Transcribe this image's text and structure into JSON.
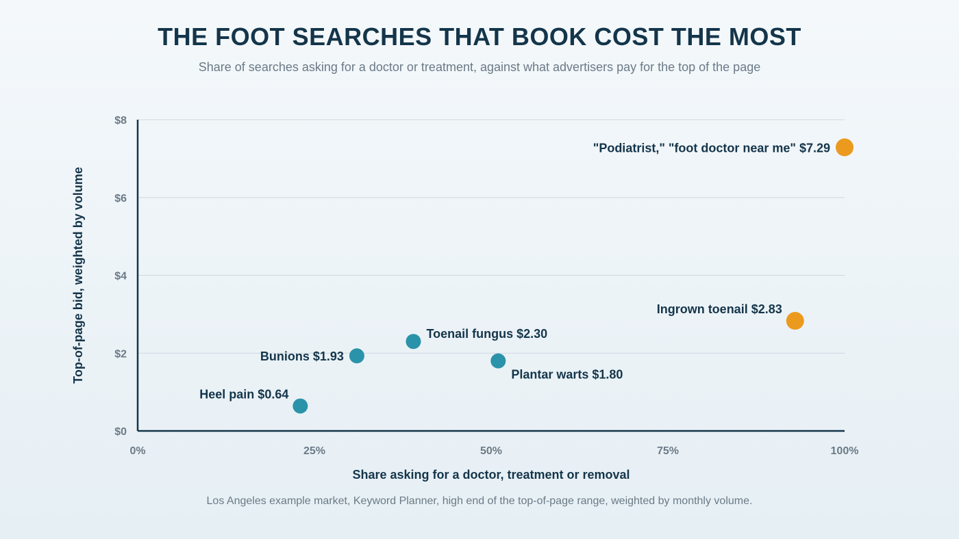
{
  "header": {
    "title": "THE FOOT SEARCHES THAT BOOK COST THE MOST",
    "subtitle": "Share of searches asking for a doctor or treatment, against what advertisers pay for the top of the page"
  },
  "footer": {
    "note": "Los Angeles example market, Keyword Planner, high end of the top-of-page range, weighted by monthly volume."
  },
  "colors": {
    "primary": "#2a93a9",
    "highlight": "#ec9a1e",
    "axis": "#14354a",
    "grid": "#cdd8df",
    "text": "#14354a",
    "muted": "#6b7a86"
  },
  "chart_data": {
    "type": "scatter",
    "xlabel": "Share asking for a doctor, treatment or removal",
    "ylabel": "Top-of-page bid, weighted by volume",
    "xlim": [
      0,
      100
    ],
    "ylim": [
      0,
      8
    ],
    "xticks": [
      {
        "value": 0,
        "label": "0%"
      },
      {
        "value": 25,
        "label": "25%"
      },
      {
        "value": 50,
        "label": "50%"
      },
      {
        "value": 75,
        "label": "75%"
      },
      {
        "value": 100,
        "label": "100%"
      }
    ],
    "yticks": [
      {
        "value": 0,
        "label": "$0"
      },
      {
        "value": 2,
        "label": "$2"
      },
      {
        "value": 4,
        "label": "$4"
      },
      {
        "value": 6,
        "label": "$6"
      },
      {
        "value": 8,
        "label": "$8"
      }
    ],
    "grid": "horizontal",
    "points": [
      {
        "key": "heel-pain",
        "label": "Heel pain $0.64",
        "x": 23,
        "y": 0.64,
        "highlight": false,
        "label_side": "upper-left"
      },
      {
        "key": "bunions",
        "label": "Bunions $1.93",
        "x": 31,
        "y": 1.93,
        "highlight": false,
        "label_side": "left"
      },
      {
        "key": "toenail-fungus",
        "label": "Toenail fungus $2.30",
        "x": 39,
        "y": 2.3,
        "highlight": false,
        "label_side": "upper-right"
      },
      {
        "key": "plantar-warts",
        "label": "Plantar warts $1.80",
        "x": 51,
        "y": 1.8,
        "highlight": false,
        "label_side": "lower-right"
      },
      {
        "key": "ingrown-toenail",
        "label": "Ingrown toenail $2.83",
        "x": 93,
        "y": 2.83,
        "highlight": true,
        "label_side": "upper-left"
      },
      {
        "key": "podiatrist",
        "label": "\"Podiatrist,\" \"foot doctor near me\" $7.29",
        "x": 100,
        "y": 7.29,
        "highlight": true,
        "label_side": "left"
      }
    ]
  }
}
